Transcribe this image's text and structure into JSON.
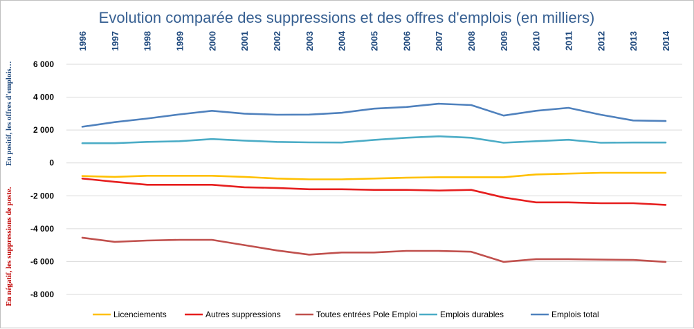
{
  "chart_data": {
    "type": "line",
    "title": "Evolution comparée des suppressions et des offres d'emplois (en milliers)",
    "ylabel_negative": "En négatif, les suppressions de poste.",
    "ylabel_positive": "En positif, les offres d'emplois…",
    "xlabel": "",
    "x": [
      "1996",
      "1997",
      "1998",
      "1999",
      "2000",
      "2001",
      "2002",
      "2003",
      "2004",
      "2005",
      "2006",
      "2007",
      "2008",
      "2009",
      "2010",
      "2011",
      "2012",
      "2013",
      "2014"
    ],
    "ylim": [
      -8000,
      6000
    ],
    "yticks": [
      6000,
      4000,
      2000,
      0,
      -2000,
      -4000,
      -6000,
      -8000
    ],
    "ytick_labels": [
      "6 000",
      "4 000",
      "2 000",
      "0",
      "-2 000",
      "-4 000",
      "-6 000",
      "-8 000"
    ],
    "grid": true,
    "legend_position": "bottom",
    "series": [
      {
        "name": "Licenciements",
        "color": "#ffc000",
        "values": [
          -800,
          -850,
          -780,
          -780,
          -780,
          -850,
          -950,
          -1000,
          -1000,
          -950,
          -900,
          -870,
          -870,
          -870,
          -700,
          -650,
          -600,
          -600,
          -600
        ]
      },
      {
        "name": "Autres suppressions",
        "color": "#e61e1e",
        "values": [
          -950,
          -1150,
          -1330,
          -1330,
          -1330,
          -1480,
          -1520,
          -1600,
          -1600,
          -1640,
          -1640,
          -1680,
          -1640,
          -2100,
          -2400,
          -2400,
          -2450,
          -2450,
          -2550
        ]
      },
      {
        "name": "Toutes entrées Pole Emploi",
        "color": "#c0504d",
        "values": [
          -4550,
          -4800,
          -4720,
          -4680,
          -4680,
          -5000,
          -5320,
          -5580,
          -5450,
          -5450,
          -5350,
          -5350,
          -5400,
          -6020,
          -5850,
          -5850,
          -5880,
          -5900,
          -6020
        ]
      },
      {
        "name": "Emplois durables",
        "color": "#4bacc6",
        "values": [
          1200,
          1200,
          1280,
          1320,
          1450,
          1360,
          1280,
          1250,
          1240,
          1400,
          1530,
          1620,
          1530,
          1230,
          1320,
          1410,
          1230,
          1240,
          1240
        ]
      },
      {
        "name": "Emplois total",
        "color": "#4f81bd",
        "values": [
          2200,
          2480,
          2700,
          2950,
          3170,
          3000,
          2930,
          2940,
          3050,
          3300,
          3400,
          3600,
          3520,
          2880,
          3170,
          3350,
          2930,
          2580,
          2550
        ]
      }
    ]
  }
}
